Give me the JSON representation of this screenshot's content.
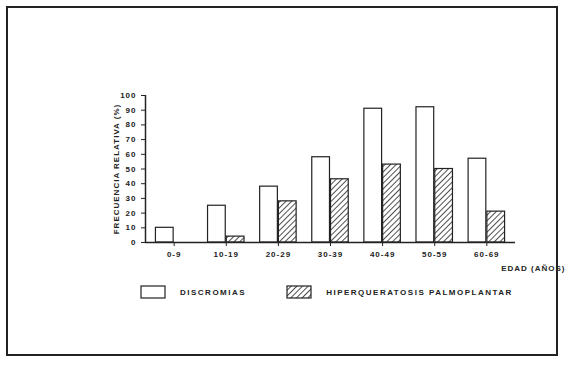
{
  "chart_data": {
    "type": "bar",
    "categories": [
      "0-9",
      "10-19",
      "20-29",
      "30-39",
      "40-49",
      "50-59",
      "60-69"
    ],
    "series": [
      {
        "name": "DISCROMIAS",
        "color": "#ffffff",
        "values": [
          10,
          25,
          38,
          58,
          91,
          92,
          57
        ]
      },
      {
        "name": "HIPERQUERATOSIS PALMOPLANTAR",
        "color": "#222222",
        "values": [
          0,
          4,
          28,
          43,
          53,
          50,
          21
        ]
      }
    ],
    "x_label": "EDAD (AÑOS)",
    "y_label": "FRECUENCIA RELATIVA (%)",
    "ylim": [
      0,
      100
    ],
    "yticks": [
      0,
      10,
      20,
      30,
      40,
      50,
      60,
      70,
      80,
      90,
      100
    ],
    "grid": false,
    "legend": "bottom"
  }
}
